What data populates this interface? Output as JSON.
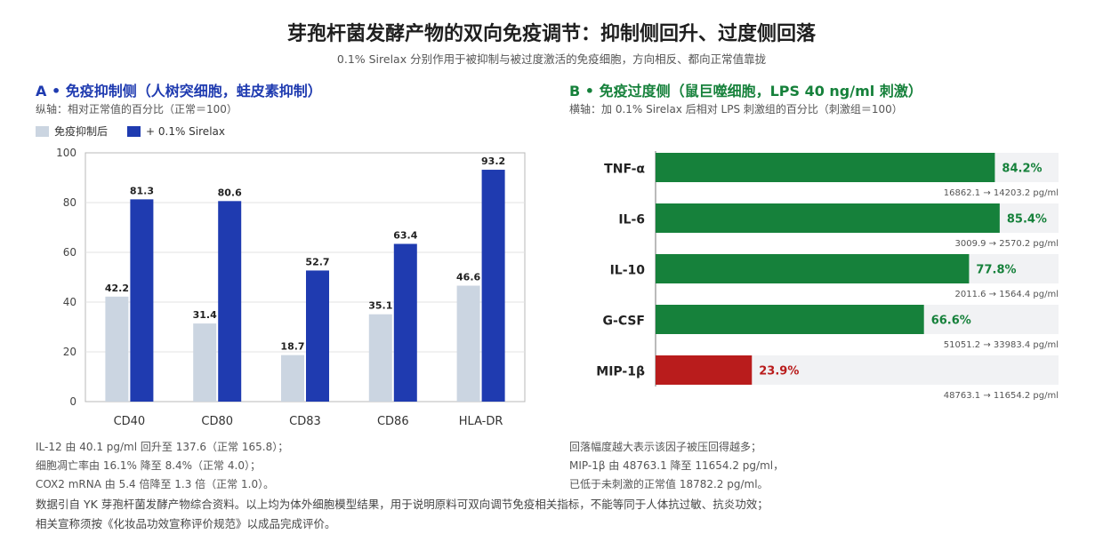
{
  "title": "芽孢杆菌发酵产物的双向免疫调节：抑制侧回升、过度侧回落",
  "subtitle": "0.1% Sirelax 分别作用于被抑制与被过度激活的免疫细胞，方向相反、都向正常值靠拢",
  "chart_data": [
    {
      "type": "bar",
      "title": "A • 免疫抑制侧（人树突细胞，蛙皮素抑制）",
      "ylabel": "纵轴：相对正常值的百分比（正常＝100）",
      "categories": [
        "CD40",
        "CD80",
        "CD83",
        "CD86",
        "HLA-DR"
      ],
      "series": [
        {
          "name": "免疫抑制后",
          "values": [
            42.2,
            31.4,
            18.7,
            35.1,
            46.6
          ],
          "color": "#cbd5e1"
        },
        {
          "name": "+ 0.1% Sirelax",
          "values": [
            81.3,
            80.6,
            52.7,
            63.4,
            93.2
          ],
          "color": "#1f3bb0"
        }
      ],
      "ylim": [
        0,
        100
      ],
      "yticks": [
        0,
        20,
        40,
        60,
        80,
        100
      ],
      "grid": true,
      "legend": "top-left"
    },
    {
      "type": "bar",
      "orientation": "horizontal",
      "title": "B • 免疫过度侧（鼠巨噬细胞，LPS 40 ng/ml 刺激）",
      "xlabel": "横轴：加 0.1% Sirelax 后相对 LPS 刺激组的百分比（刺激组＝100）",
      "categories": [
        "TNF-α",
        "IL-6",
        "IL-10",
        "G-CSF",
        "MIP-1β"
      ],
      "values": [
        84.2,
        85.4,
        77.8,
        66.6,
        23.9
      ],
      "value_labels": [
        "84.2%",
        "85.4%",
        "77.8%",
        "66.6%",
        "23.9%"
      ],
      "sublabels": [
        "16862.1 → 14203.2 pg/ml",
        "3009.9 → 2570.2 pg/ml",
        "2011.6 → 1564.4 pg/ml",
        "51051.2 → 33983.4 pg/ml",
        "48763.1 → 11654.2 pg/ml"
      ],
      "colors": [
        "#16813b",
        "#16813b",
        "#16813b",
        "#16813b",
        "#b91c1c"
      ],
      "highlight_color": "#b91c1c",
      "xlim": [
        0,
        100
      ]
    }
  ],
  "notes_a": [
    "IL-12 由 40.1 pg/ml 回升至 137.6（正常 165.8）；",
    "细胞凋亡率由 16.1% 降至 8.4%（正常 4.0）；",
    "COX2 mRNA 由 5.4 倍降至 1.3 倍（正常 1.0）。"
  ],
  "notes_b": [
    "回落幅度越大表示该因子被压回得越多；",
    "MIP-1β 由 48763.1 降至 11654.2 pg/ml，",
    "已低于未刺激的正常值 18782.2 pg/ml。"
  ],
  "source": [
    "数据引自 YK 芽孢杆菌发酵产物综合资料。以上均为体外细胞模型结果，用于说明原料可双向调节免疫相关指标，不能等同于人体抗过敏、抗炎功效；",
    "相关宣称须按《化妆品功效宣称评价规范》以成品完成评价。"
  ]
}
